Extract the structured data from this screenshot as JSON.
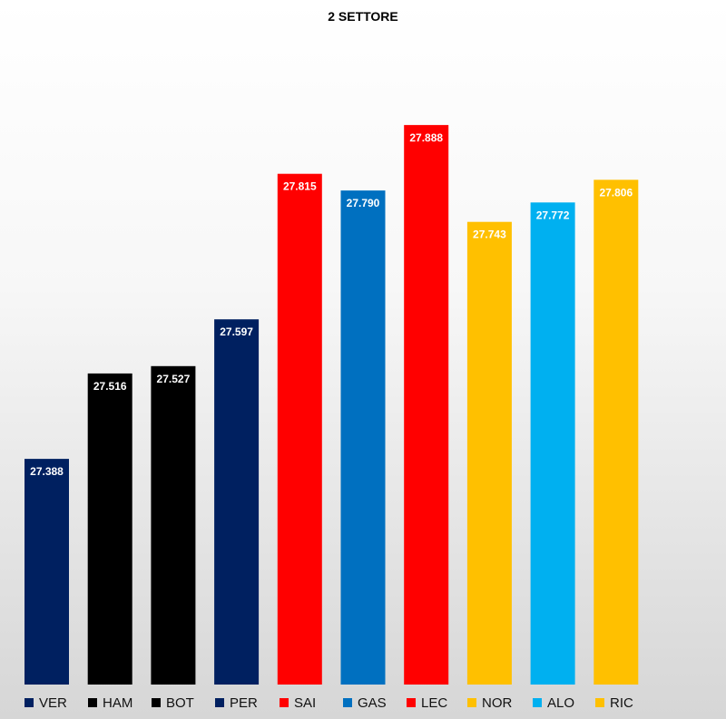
{
  "chart_data": {
    "type": "bar",
    "title": "2 SETTORE",
    "categories": [
      "VER",
      "HAM",
      "BOT",
      "PER",
      "SAI",
      "GAS",
      "LEC",
      "NOR",
      "ALO",
      "RIC"
    ],
    "values": [
      27.388,
      27.516,
      27.527,
      27.597,
      27.815,
      27.79,
      27.888,
      27.743,
      27.772,
      27.806
    ],
    "value_labels": [
      "27.388",
      "27.516",
      "27.527",
      "27.597",
      "27.815",
      "27.790",
      "27.888",
      "27.743",
      "27.772",
      "27.806"
    ],
    "colors": [
      "#002060",
      "#000000",
      "#000000",
      "#002060",
      "#ff0000",
      "#0070c0",
      "#ff0000",
      "#ffc000",
      "#00b0f0",
      "#ffc000"
    ],
    "ylim": [
      27.05,
      27.93
    ],
    "grid": false,
    "legend_position": "bottom"
  }
}
